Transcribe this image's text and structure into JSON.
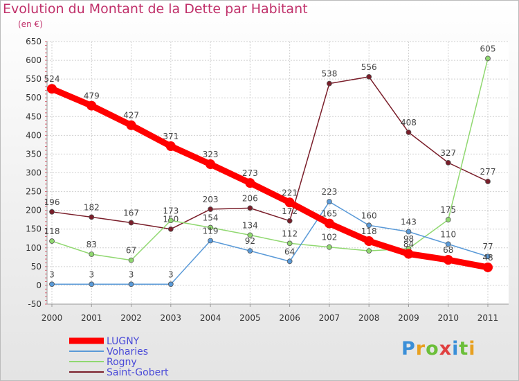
{
  "header": {
    "title": "Evolution du Montant de la Dette par Habitant",
    "subtitle": "(en €)"
  },
  "logo": {
    "letters": [
      "P",
      "r",
      "o",
      "x",
      "i",
      "t",
      "i"
    ],
    "colors": [
      "#3a8fd8",
      "#e8a020",
      "#6cbf3a",
      "#e04040",
      "#3a8fd8",
      "#6cbf3a",
      "#e8a020"
    ]
  },
  "chart_data": {
    "type": "line",
    "x": [
      2000,
      2001,
      2002,
      2003,
      2004,
      2005,
      2006,
      2007,
      2008,
      2009,
      2010,
      2011
    ],
    "ylim": [
      -50,
      650
    ],
    "yticks": [
      -50,
      0,
      50,
      100,
      150,
      200,
      250,
      300,
      350,
      400,
      450,
      500,
      550,
      600,
      650
    ],
    "grid": true,
    "legend": "bottom-left",
    "series": [
      {
        "name": "Saint-Gobert",
        "color": "#7a1e2a",
        "values": [
          196,
          182,
          167,
          150,
          203,
          206,
          172,
          538,
          556,
          408,
          327,
          277
        ]
      },
      {
        "name": "Rogny",
        "color": "#90d870",
        "values": [
          118,
          83,
          67,
          173,
          154,
          134,
          112,
          102,
          92,
          98,
          175,
          605
        ]
      },
      {
        "name": "Voharies",
        "color": "#5a9ad8",
        "values": [
          3,
          3,
          3,
          3,
          119,
          92,
          64,
          223,
          160,
          143,
          110,
          77
        ]
      },
      {
        "name": "LUGNY",
        "color": "#ff0000",
        "values": [
          524,
          479,
          427,
          371,
          323,
          273,
          221,
          165,
          118,
          84,
          68,
          48
        ]
      }
    ],
    "legend_order": [
      "LUGNY",
      "Voharies",
      "Rogny",
      "Saint-Gobert"
    ]
  }
}
